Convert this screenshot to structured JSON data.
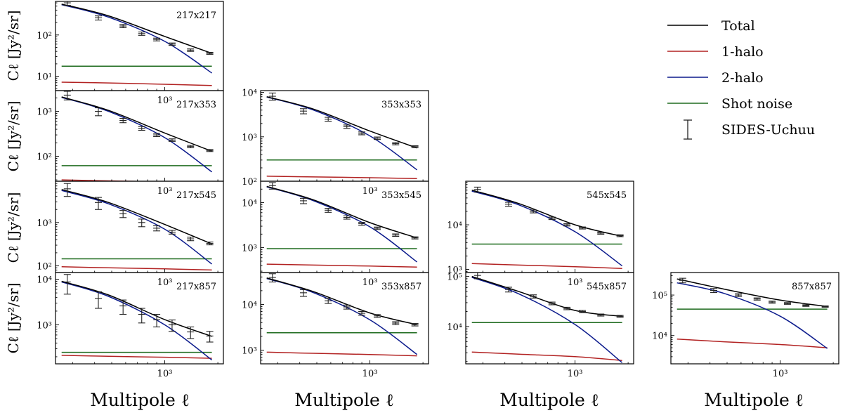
{
  "figure": {
    "ylabel": "Cℓ [Jy²/sr]",
    "xlabel": "Multipole ℓ"
  },
  "legend": [
    {
      "label": "Total",
      "color": "#000000",
      "kind": "line"
    },
    {
      "label": "1-halo",
      "color": "#b22222",
      "kind": "line"
    },
    {
      "label": "2-halo",
      "color": "#0b1a8c",
      "kind": "line"
    },
    {
      "label": "Shot noise",
      "color": "#1e6b1e",
      "kind": "line"
    },
    {
      "label": "SIDES-Uchuu",
      "color": "#000000",
      "kind": "errorbar"
    }
  ],
  "colors": {
    "total": "#000000",
    "one_halo": "#b22222",
    "two_halo": "#0b1a8c",
    "shot": "#1e6b1e",
    "data": "#222222"
  },
  "chart_data": [
    {
      "type": "line",
      "title": "217x217",
      "xlim": [
        240,
        2150
      ],
      "ylim": [
        4.5,
        650
      ],
      "xtick": 1000,
      "xtick_label": "10³",
      "yticks": [
        {
          "v": 10,
          "l": "10¹"
        },
        {
          "v": 100,
          "l": "10²"
        }
      ],
      "x": [
        260,
        480,
        1000,
        1850
      ],
      "series": {
        "total": [
          560,
          290,
          92,
          36
        ],
        "two_halo": [
          540,
          270,
          70,
          12
        ],
        "one_halo": [
          7.2,
          6.9,
          6.4,
          6.0
        ],
        "shot": [
          17.5,
          17.5,
          17.5,
          17.5
        ]
      },
      "data_points": [
        {
          "x": 280,
          "y": 600,
          "e": 80
        },
        {
          "x": 420,
          "y": 260,
          "e": 30
        },
        {
          "x": 580,
          "y": 165,
          "e": 15
        },
        {
          "x": 740,
          "y": 108,
          "e": 10
        },
        {
          "x": 900,
          "y": 78,
          "e": 6
        },
        {
          "x": 1100,
          "y": 60,
          "e": 4
        },
        {
          "x": 1400,
          "y": 43,
          "e": 3
        },
        {
          "x": 1800,
          "y": 36,
          "e": 2
        }
      ]
    },
    {
      "type": "line",
      "title": "217x353",
      "xlim": [
        240,
        2150
      ],
      "ylim": [
        28,
        2900
      ],
      "xtick": 1000,
      "xtick_label": "10³",
      "yticks": [
        {
          "v": 100,
          "l": "10²"
        },
        {
          "v": 1000,
          "l": "10³"
        }
      ],
      "x": [
        260,
        480,
        1000,
        1850
      ],
      "series": {
        "total": [
          2100,
          1050,
          330,
          130
        ],
        "two_halo": [
          2050,
          1000,
          260,
          45
        ],
        "one_halo": [
          30,
          28.5,
          27,
          26
        ],
        "shot": [
          62,
          62,
          62,
          62
        ]
      },
      "data_points": [
        {
          "x": 280,
          "y": 2300,
          "e": 500
        },
        {
          "x": 420,
          "y": 1000,
          "e": 200
        },
        {
          "x": 580,
          "y": 630,
          "e": 70
        },
        {
          "x": 740,
          "y": 420,
          "e": 40
        },
        {
          "x": 900,
          "y": 300,
          "e": 25
        },
        {
          "x": 1100,
          "y": 230,
          "e": 15
        },
        {
          "x": 1400,
          "y": 165,
          "e": 10
        },
        {
          "x": 1800,
          "y": 135,
          "e": 7
        }
      ]
    },
    {
      "type": "line",
      "title": "353x353",
      "xlim": [
        240,
        2150
      ],
      "ylim": [
        100,
        11000
      ],
      "xtick": 1000,
      "xtick_label": "10³",
      "yticks": [
        {
          "v": 100,
          "l": "10²"
        },
        {
          "v": 1000,
          "l": "10³"
        },
        {
          "v": 10000,
          "l": "10⁴"
        }
      ],
      "x": [
        260,
        480,
        1000,
        1850
      ],
      "series": {
        "total": [
          8000,
          4200,
          1350,
          560
        ],
        "two_halo": [
          7900,
          4000,
          1050,
          180
        ],
        "one_halo": [
          130,
          125,
          120,
          115
        ],
        "shot": [
          300,
          300,
          300,
          300
        ]
      },
      "data_points": [
        {
          "x": 280,
          "y": 8200,
          "e": 1500
        },
        {
          "x": 420,
          "y": 3800,
          "e": 500
        },
        {
          "x": 580,
          "y": 2500,
          "e": 250
        },
        {
          "x": 740,
          "y": 1700,
          "e": 150
        },
        {
          "x": 900,
          "y": 1200,
          "e": 90
        },
        {
          "x": 1100,
          "y": 930,
          "e": 60
        },
        {
          "x": 1400,
          "y": 700,
          "e": 40
        },
        {
          "x": 1800,
          "y": 600,
          "e": 30
        }
      ]
    },
    {
      "type": "line",
      "title": "217x545",
      "xlim": [
        240,
        2150
      ],
      "ylim": [
        70,
        9000
      ],
      "xtick": 1000,
      "xtick_label": "10³",
      "yticks": [
        {
          "v": 100,
          "l": "10²"
        },
        {
          "v": 1000,
          "l": "10³"
        }
      ],
      "x": [
        260,
        480,
        1000,
        1850
      ],
      "series": {
        "total": [
          5800,
          2900,
          900,
          320
        ],
        "two_halo": [
          5500,
          2700,
          700,
          110
        ],
        "one_halo": [
          95,
          90,
          85,
          80
        ],
        "shot": [
          145,
          145,
          145,
          145
        ]
      },
      "data_points": [
        {
          "x": 280,
          "y": 6000,
          "e": 2000
        },
        {
          "x": 420,
          "y": 2900,
          "e": 900
        },
        {
          "x": 580,
          "y": 1600,
          "e": 300
        },
        {
          "x": 740,
          "y": 1000,
          "e": 200
        },
        {
          "x": 900,
          "y": 740,
          "e": 100
        },
        {
          "x": 1100,
          "y": 600,
          "e": 60
        },
        {
          "x": 1400,
          "y": 420,
          "e": 40
        },
        {
          "x": 1800,
          "y": 330,
          "e": 25
        }
      ]
    },
    {
      "type": "line",
      "title": "353x545",
      "xlim": [
        240,
        2150
      ],
      "ylim": [
        280,
        30000
      ],
      "xtick": 1000,
      "xtick_label": "10³",
      "yticks": [
        {
          "v": 1000,
          "l": "10³"
        },
        {
          "v": 10000,
          "l": "10⁴"
        }
      ],
      "x": [
        260,
        480,
        1000,
        1850
      ],
      "series": {
        "total": [
          23000,
          11500,
          3600,
          1650
        ],
        "two_halo": [
          22500,
          11000,
          2900,
          480
        ],
        "one_halo": [
          430,
          410,
          390,
          370
        ],
        "shot": [
          950,
          950,
          950,
          950
        ]
      },
      "data_points": [
        {
          "x": 280,
          "y": 24000,
          "e": 4000
        },
        {
          "x": 420,
          "y": 11000,
          "e": 1500
        },
        {
          "x": 580,
          "y": 6800,
          "e": 700
        },
        {
          "x": 740,
          "y": 4700,
          "e": 400
        },
        {
          "x": 900,
          "y": 3400,
          "e": 250
        },
        {
          "x": 1100,
          "y": 2700,
          "e": 170
        },
        {
          "x": 1400,
          "y": 1900,
          "e": 120
        },
        {
          "x": 1800,
          "y": 1650,
          "e": 90
        }
      ]
    },
    {
      "type": "line",
      "title": "545x545",
      "xlim": [
        240,
        2150
      ],
      "ylim": [
        850,
        95000
      ],
      "xtick": 1000,
      "xtick_label": "10³",
      "yticks": [
        {
          "v": 1000,
          "l": "10³"
        },
        {
          "v": 10000,
          "l": "10⁴"
        }
      ],
      "x": [
        260,
        480,
        1000,
        1850
      ],
      "series": {
        "total": [
          60000,
          30000,
          10000,
          5500
        ],
        "two_halo": [
          57000,
          28000,
          7000,
          1200
        ],
        "one_halo": [
          1350,
          1250,
          1150,
          1050
        ],
        "shot": [
          3700,
          3700,
          3700,
          3700
        ]
      },
      "data_points": [
        {
          "x": 280,
          "y": 62000,
          "e": 8000
        },
        {
          "x": 420,
          "y": 29000,
          "e": 3000
        },
        {
          "x": 580,
          "y": 20000,
          "e": 1500
        },
        {
          "x": 740,
          "y": 14000,
          "e": 900
        },
        {
          "x": 900,
          "y": 10000,
          "e": 600
        },
        {
          "x": 1100,
          "y": 8500,
          "e": 450
        },
        {
          "x": 1400,
          "y": 6500,
          "e": 350
        },
        {
          "x": 1800,
          "y": 5700,
          "e": 280
        }
      ]
    },
    {
      "type": "line",
      "title": "217x857",
      "xlim": [
        240,
        2150
      ],
      "ylim": [
        140,
        14000
      ],
      "xtick": 1000,
      "xtick_label": "10³",
      "yticks": [
        {
          "v": 1000,
          "l": "10³"
        },
        {
          "v": 10000,
          "l": "10⁴"
        }
      ],
      "x": [
        260,
        480,
        1000,
        1850
      ],
      "series": {
        "total": [
          9000,
          4500,
          1300,
          560
        ],
        "two_halo": [
          8700,
          4200,
          1000,
          170
        ],
        "one_halo": [
          215,
          205,
          195,
          185
        ],
        "shot": [
          250,
          250,
          250,
          250
        ]
      },
      "data_points": [
        {
          "x": 280,
          "y": 8700,
          "e": 4000
        },
        {
          "x": 420,
          "y": 3800,
          "e": 1500
        },
        {
          "x": 580,
          "y": 2600,
          "e": 900
        },
        {
          "x": 740,
          "y": 1700,
          "e": 600
        },
        {
          "x": 900,
          "y": 1300,
          "e": 400
        },
        {
          "x": 1100,
          "y": 1000,
          "e": 280
        },
        {
          "x": 1400,
          "y": 700,
          "e": 200
        },
        {
          "x": 1800,
          "y": 570,
          "e": 150
        }
      ]
    },
    {
      "type": "line",
      "title": "353x857",
      "xlim": [
        240,
        2150
      ],
      "ylim": [
        500,
        50000
      ],
      "xtick": 1000,
      "xtick_label": "10³",
      "yticks": [
        {
          "v": 1000,
          "l": "10³"
        },
        {
          "v": 10000,
          "l": "10⁴"
        }
      ],
      "x": [
        260,
        480,
        1000,
        1850
      ],
      "series": {
        "total": [
          38000,
          19000,
          6500,
          3600
        ],
        "two_halo": [
          37000,
          18000,
          4600,
          800
        ],
        "one_halo": [
          900,
          850,
          800,
          750
        ],
        "shot": [
          2400,
          2400,
          2400,
          2400
        ]
      },
      "data_points": [
        {
          "x": 280,
          "y": 39000,
          "e": 8000
        },
        {
          "x": 420,
          "y": 18000,
          "e": 3000
        },
        {
          "x": 580,
          "y": 12000,
          "e": 1500
        },
        {
          "x": 740,
          "y": 8800,
          "e": 900
        },
        {
          "x": 900,
          "y": 6400,
          "e": 600
        },
        {
          "x": 1100,
          "y": 5600,
          "e": 400
        },
        {
          "x": 1400,
          "y": 3900,
          "e": 280
        },
        {
          "x": 1800,
          "y": 3600,
          "e": 220
        }
      ]
    },
    {
      "type": "line",
      "title": "545x857",
      "xlim": [
        240,
        2150
      ],
      "ylim": [
        1800,
        120000
      ],
      "xtick": 1000,
      "xtick_label": "10³",
      "yticks": [
        {
          "v": 10000,
          "l": "10⁴"
        },
        {
          "v": 100000,
          "l": "10⁵"
        }
      ],
      "x": [
        260,
        480,
        1000,
        1850
      ],
      "series": {
        "total": [
          100000,
          50000,
          21000,
          16000
        ],
        "two_halo": [
          96000,
          45000,
          11000,
          1900
        ],
        "one_halo": [
          3100,
          2800,
          2500,
          2100
        ],
        "shot": [
          12000,
          12000,
          12000,
          12000
        ]
      },
      "data_points": [
        {
          "x": 280,
          "y": 105000,
          "e": 15000
        },
        {
          "x": 420,
          "y": 55000,
          "e": 6000
        },
        {
          "x": 580,
          "y": 40000,
          "e": 3000
        },
        {
          "x": 740,
          "y": 29000,
          "e": 1800
        },
        {
          "x": 900,
          "y": 23000,
          "e": 1300
        },
        {
          "x": 1100,
          "y": 20000,
          "e": 1000
        },
        {
          "x": 1400,
          "y": 17000,
          "e": 800
        },
        {
          "x": 1800,
          "y": 16000,
          "e": 700
        }
      ]
    },
    {
      "type": "line",
      "title": "857x857",
      "xlim": [
        240,
        2150
      ],
      "ylim": [
        2000,
        360000
      ],
      "xtick": 1000,
      "xtick_label": "10³",
      "yticks": [
        {
          "v": 10000,
          "l": "10⁴"
        },
        {
          "v": 100000,
          "l": "10⁵"
        }
      ],
      "x": [
        260,
        480,
        1000,
        1850
      ],
      "series": {
        "total": [
          250000,
          140000,
          75000,
          52000
        ],
        "two_halo": [
          200000,
          110000,
          30000,
          4800
        ],
        "one_halo": [
          8200,
          7000,
          6000,
          5000
        ],
        "shot": [
          45000,
          45000,
          45000,
          45000
        ]
      },
      "data_points": [
        {
          "x": 280,
          "y": 230000,
          "e": 30000
        },
        {
          "x": 420,
          "y": 130000,
          "e": 15000
        },
        {
          "x": 580,
          "y": 100000,
          "e": 8000
        },
        {
          "x": 740,
          "y": 80000,
          "e": 5000
        },
        {
          "x": 900,
          "y": 67000,
          "e": 4000
        },
        {
          "x": 1100,
          "y": 62000,
          "e": 3000
        },
        {
          "x": 1400,
          "y": 55000,
          "e": 2500
        },
        {
          "x": 1800,
          "y": 52000,
          "e": 2000
        }
      ]
    }
  ]
}
